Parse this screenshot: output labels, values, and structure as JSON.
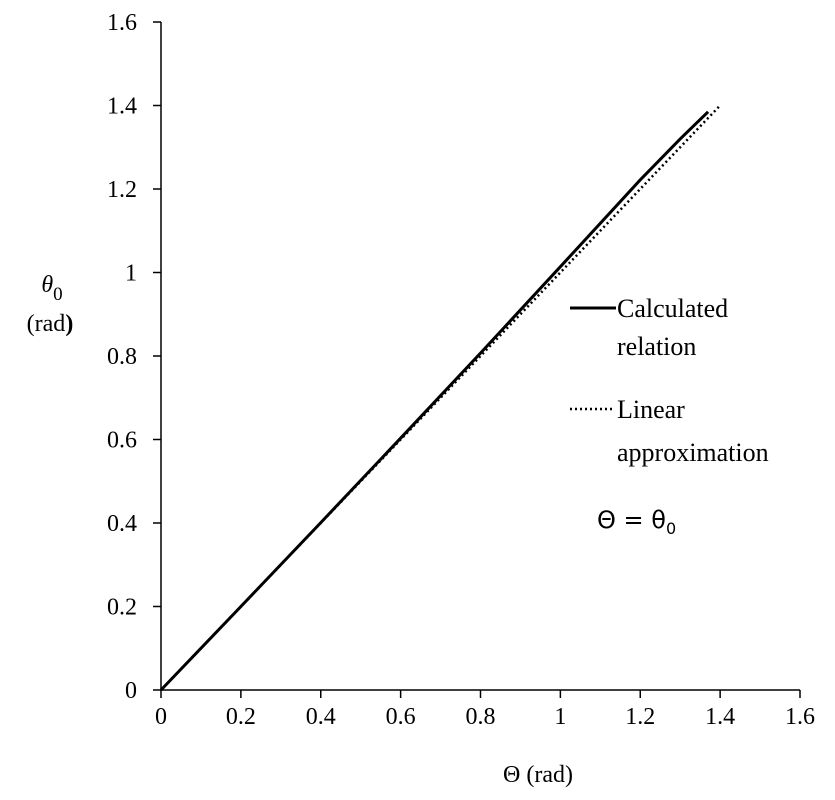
{
  "chart_data": {
    "type": "line",
    "title": "",
    "xlabel": "Θ (rad)",
    "ylabel_symbol": "θ",
    "ylabel_subscript": "0",
    "ylabel_unit": "(rad",
    "ylabel_unit_close": ")",
    "xlim": [
      0,
      1.6
    ],
    "ylim": [
      0,
      1.6
    ],
    "xticks": [
      0,
      0.2,
      0.4,
      0.6,
      0.8,
      1,
      1.2,
      1.4,
      1.6
    ],
    "yticks": [
      0,
      0.2,
      0.4,
      0.6,
      0.8,
      1,
      1.2,
      1.4,
      1.6
    ],
    "xtick_labels": [
      "0",
      "0.2",
      "0.4",
      "0.6",
      "0.8",
      "1",
      "1.2",
      "1.4",
      "1.6"
    ],
    "ytick_labels": [
      "0",
      "0.2",
      "0.4",
      "0.6",
      "0.8",
      "1",
      "1.2",
      "1.4",
      "1.6"
    ],
    "grid": false,
    "legend_position": "right",
    "series": [
      {
        "name_line1": "Calculated",
        "name_line2": "relation",
        "style": "solid",
        "x": [
          0,
          0.2,
          0.4,
          0.6,
          0.8,
          1.0,
          1.2,
          1.3,
          1.37
        ],
        "y": [
          0,
          0.2,
          0.401,
          0.603,
          0.807,
          1.014,
          1.222,
          1.32,
          1.385
        ]
      },
      {
        "name_line1": "Linear",
        "name_line2": "approximation",
        "style": "dotted",
        "x": [
          0,
          1.4
        ],
        "y": [
          0,
          1.4
        ]
      }
    ],
    "annotation": {
      "lhs": "Θ = θ",
      "subscript": "0"
    }
  }
}
